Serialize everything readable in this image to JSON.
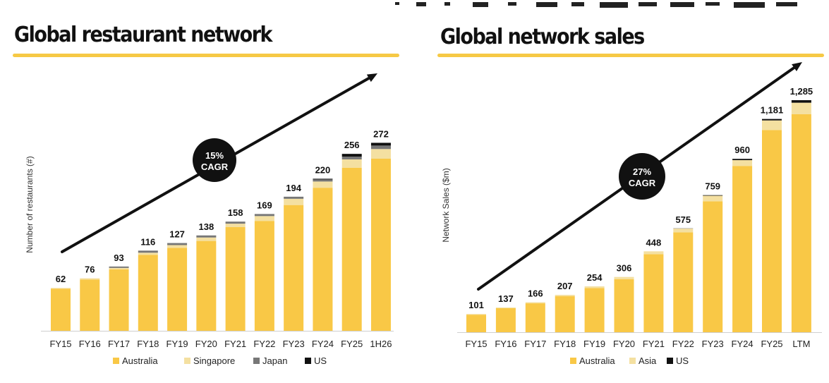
{
  "colors": {
    "australia": "#f9c846",
    "singapore": "#f4e0a1",
    "asia": "#f4e0a1",
    "japan": "#777777",
    "us": "#111111",
    "accent": "#f6c945",
    "text": "#111111"
  },
  "chart_data": [
    {
      "type": "bar",
      "stacked": true,
      "title": "Global restaurant network",
      "ylabel": "Number of restaurants (#)",
      "xlabel": "",
      "ylim": [
        0,
        300
      ],
      "categories": [
        "FY15",
        "FY16",
        "FY17",
        "FY18",
        "FY19",
        "FY20",
        "FY21",
        "FY22",
        "FY23",
        "FY24",
        "FY25",
        "1H26"
      ],
      "totals": [
        62,
        76,
        93,
        116,
        127,
        138,
        158,
        169,
        194,
        220,
        256,
        272
      ],
      "total_labels": [
        "62",
        "76",
        "93",
        "116",
        "127",
        "138",
        "158",
        "169",
        "194",
        "220",
        "256",
        "272"
      ],
      "series": [
        {
          "name": "Australia",
          "color_key": "australia",
          "values": [
            61,
            74,
            89,
            110,
            120,
            130,
            150,
            159,
            182,
            207,
            236,
            249
          ]
        },
        {
          "name": "Singapore",
          "color_key": "singapore",
          "values": [
            1,
            2,
            2,
            3,
            4,
            5,
            5,
            7,
            9,
            9,
            12,
            14
          ]
        },
        {
          "name": "Japan",
          "color_key": "japan",
          "values": [
            0,
            0,
            2,
            3,
            3,
            3,
            3,
            3,
            3,
            3,
            4,
            5
          ]
        },
        {
          "name": "US",
          "color_key": "us",
          "values": [
            0,
            0,
            0,
            0,
            0,
            0,
            0,
            0,
            0,
            1,
            4,
            4
          ]
        }
      ],
      "legend": [
        "Australia",
        "Singapore",
        "Japan",
        "US"
      ],
      "legend_position": "bottom",
      "annotation": {
        "line1": "15%",
        "line2": "CAGR"
      }
    },
    {
      "type": "bar",
      "stacked": true,
      "title": "Global network sales",
      "ylabel": "Network Sales ($m)",
      "xlabel": "",
      "ylim": [
        0,
        1400
      ],
      "categories": [
        "FY15",
        "FY16",
        "FY17",
        "FY18",
        "FY19",
        "FY20",
        "FY21",
        "FY22",
        "FY23",
        "FY24",
        "FY25",
        "LTM"
      ],
      "totals": [
        101,
        137,
        166,
        207,
        254,
        306,
        448,
        575,
        759,
        960,
        1181,
        1285
      ],
      "total_labels": [
        "101",
        "137",
        "166",
        "207",
        "254",
        "306",
        "448",
        "575",
        "759",
        "960",
        "1,181",
        "1,285"
      ],
      "series": [
        {
          "name": "Australia",
          "color_key": "australia",
          "values": [
            97,
            133,
            160,
            200,
            245,
            294,
            432,
            553,
            725,
            921,
            1120,
            1207
          ]
        },
        {
          "name": "Asia",
          "color_key": "asia",
          "values": [
            4,
            4,
            6,
            7,
            9,
            12,
            16,
            21,
            31,
            32,
            53,
            64
          ]
        },
        {
          "name": "US",
          "color_key": "us",
          "values": [
            0,
            0,
            0,
            0,
            0,
            0,
            0,
            1,
            3,
            7,
            8,
            14
          ]
        }
      ],
      "legend": [
        "Australia",
        "Asia",
        "US"
      ],
      "legend_position": "bottom",
      "annotation": {
        "line1": "27%",
        "line2": "CAGR"
      }
    }
  ]
}
